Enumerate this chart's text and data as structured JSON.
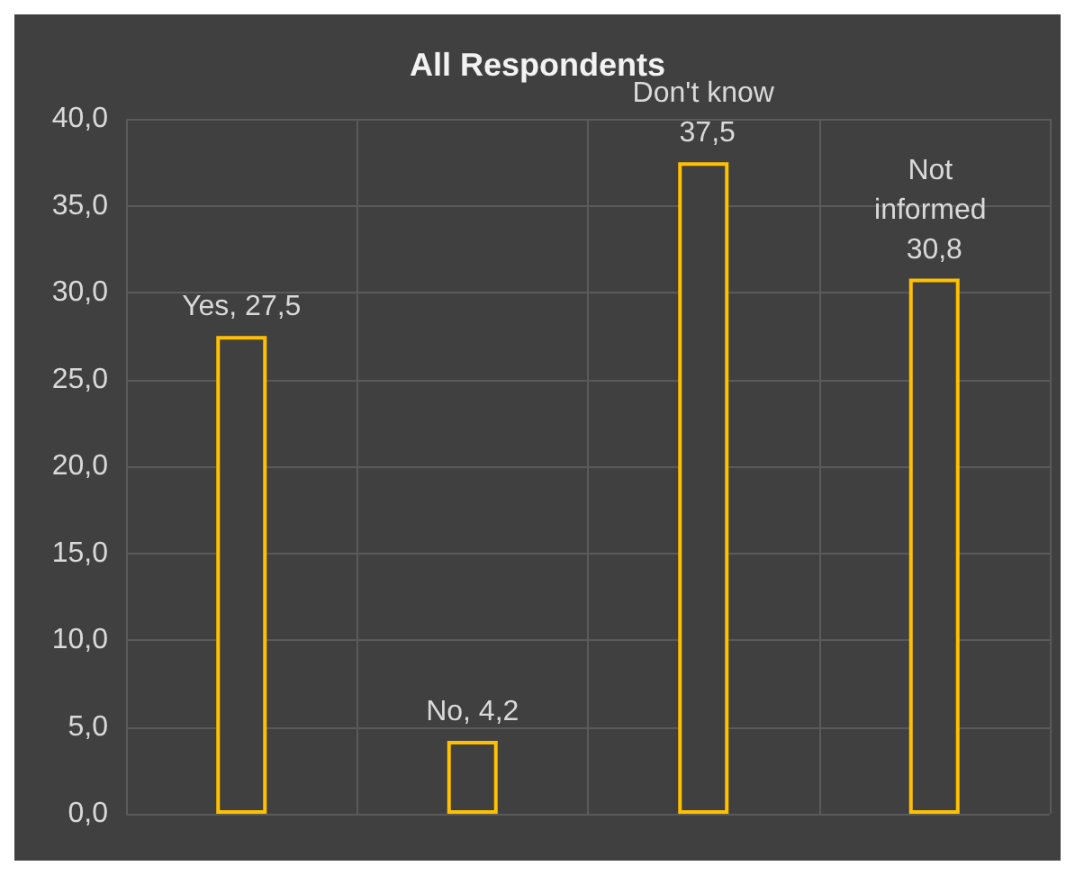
{
  "chart_data": {
    "type": "bar",
    "title": "All Respondents",
    "categories": [
      null,
      null,
      null,
      null
    ],
    "values": [
      27.5,
      4.2,
      37.5,
      30.8
    ],
    "value_labels": [
      "Yes, 27,5",
      "No, 4,2",
      "Don't know 37,5",
      "Not informed 30,8"
    ],
    "color": "#ffc000",
    "ylim": [
      0,
      40
    ],
    "yticks": [
      {
        "value": 0,
        "label": "0,0"
      },
      {
        "value": 5,
        "label": "5,0"
      },
      {
        "value": 10,
        "label": "10,0"
      },
      {
        "value": 15,
        "label": "15,0"
      },
      {
        "value": 20,
        "label": "20,0"
      },
      {
        "value": 25,
        "label": "25,0"
      },
      {
        "value": 30,
        "label": "30,0"
      },
      {
        "value": 35,
        "label": "35,0"
      },
      {
        "value": 40,
        "label": "40,0"
      }
    ],
    "grid": true
  }
}
